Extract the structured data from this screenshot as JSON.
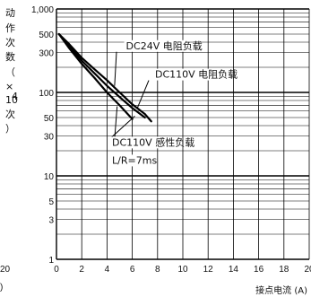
{
  "chart_data": {
    "type": "line",
    "ylabel_chars": [
      "动",
      "作",
      "次",
      "数",
      "（",
      "×",
      "10",
      "4",
      "次",
      "）"
    ],
    "xlabel": "接点电流 (A)",
    "xlim": [
      0,
      20
    ],
    "ylim": [
      1,
      1000
    ],
    "y_scale": "log",
    "x_ticks": [
      0,
      2,
      4,
      6,
      8,
      10,
      12,
      14,
      16,
      18,
      20
    ],
    "x_tick_labels": [
      "0",
      "2",
      "4",
      "6",
      "8",
      "10",
      "12",
      "14",
      "16",
      "18",
      "20"
    ],
    "y_ticks": [
      1,
      3,
      5,
      10,
      30,
      50,
      100,
      300,
      500,
      1000
    ],
    "y_tick_labels": [
      "1",
      "3",
      "5",
      "10",
      "30",
      "50",
      "100",
      "300",
      "500",
      "1,000"
    ],
    "grid": true,
    "series": [
      {
        "name": "DC24V 电阻负载",
        "x": [
          0.2,
          1,
          2,
          3,
          4,
          5,
          6,
          7,
          7.5
        ],
        "y": [
          500,
          380,
          260,
          190,
          140,
          100,
          72,
          55,
          45
        ]
      },
      {
        "name": "DC110V 电阻负载",
        "x": [
          0.2,
          1,
          2,
          3,
          4,
          5,
          6,
          7
        ],
        "y": [
          500,
          360,
          240,
          170,
          120,
          88,
          65,
          50
        ]
      },
      {
        "name": "DC110V 感性负载",
        "x": [
          0.2,
          1,
          2,
          3,
          4,
          5,
          6
        ],
        "y": [
          500,
          340,
          220,
          150,
          100,
          70,
          48
        ]
      }
    ],
    "annotations": [
      {
        "id": "a1",
        "text": "DC24V  电阻负载",
        "x": 5.5,
        "y": 330
      },
      {
        "id": "a2",
        "text": "DC110V  电阻负载",
        "x": 7.8,
        "y": 150
      },
      {
        "id": "a3",
        "text": "DC110V  感性负载",
        "x": 4.4,
        "y": 23
      },
      {
        "id": "a4",
        "text": "L/R=7ms",
        "x": 4.4,
        "y": 14
      }
    ],
    "left_edge_labels": {
      "bottom_tick": "20",
      "bottom_paren": ")"
    }
  },
  "colors": {
    "line": "#000000",
    "grid": "#000000",
    "background": "#ffffff"
  }
}
